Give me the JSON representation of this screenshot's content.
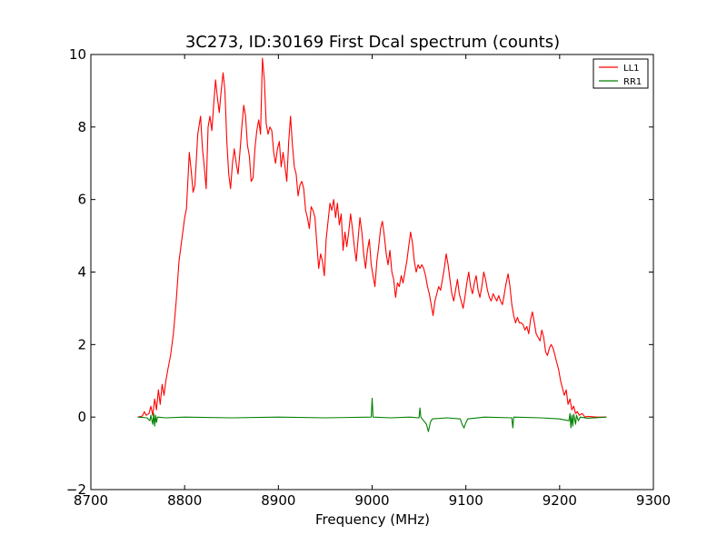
{
  "chart_data": {
    "type": "line",
    "title": "3C273, ID:30169 First Dcal spectrum (counts)",
    "xlabel": "Frequency (MHz)",
    "ylabel": "",
    "xlim": [
      8700,
      9300
    ],
    "ylim": [
      -2,
      10
    ],
    "xticks": [
      8700,
      8800,
      8900,
      9000,
      9100,
      9200,
      9300
    ],
    "yticks": [
      -2,
      0,
      2,
      4,
      6,
      8,
      10
    ],
    "xtick_labels": [
      "8700",
      "8800",
      "8900",
      "9000",
      "9100",
      "9200",
      "9300"
    ],
    "ytick_labels": [
      "−2",
      "0",
      "2",
      "4",
      "6",
      "8",
      "10"
    ],
    "grid": false,
    "legend_position": "top-right",
    "series": [
      {
        "name": "LL1",
        "color": "#ff0000",
        "points": [
          [
            8750,
            0.0
          ],
          [
            8755,
            0.03
          ],
          [
            8757,
            0.15
          ],
          [
            8759,
            0.05
          ],
          [
            8762,
            0.1
          ],
          [
            8764,
            0.3
          ],
          [
            8766,
            0.05
          ],
          [
            8768,
            0.5
          ],
          [
            8770,
            0.2
          ],
          [
            8772,
            0.75
          ],
          [
            8774,
            0.35
          ],
          [
            8776,
            0.9
          ],
          [
            8778,
            0.6
          ],
          [
            8780,
            1.0
          ],
          [
            8782,
            1.3
          ],
          [
            8785,
            1.7
          ],
          [
            8788,
            2.3
          ],
          [
            8791,
            3.2
          ],
          [
            8794,
            4.3
          ],
          [
            8797,
            4.9
          ],
          [
            8800,
            5.5
          ],
          [
            8802,
            5.75
          ],
          [
            8805,
            7.3
          ],
          [
            8807,
            6.8
          ],
          [
            8809,
            6.2
          ],
          [
            8811,
            6.4
          ],
          [
            8814,
            7.8
          ],
          [
            8817,
            8.3
          ],
          [
            8819,
            7.4
          ],
          [
            8821,
            6.9
          ],
          [
            8823,
            6.3
          ],
          [
            8825,
            8.0
          ],
          [
            8827,
            8.3
          ],
          [
            8829,
            7.9
          ],
          [
            8831,
            8.6
          ],
          [
            8833,
            9.3
          ],
          [
            8835,
            8.8
          ],
          [
            8837,
            8.4
          ],
          [
            8839,
            9.0
          ],
          [
            8841,
            9.5
          ],
          [
            8843,
            9.0
          ],
          [
            8845,
            7.6
          ],
          [
            8847,
            6.7
          ],
          [
            8849,
            6.3
          ],
          [
            8851,
            7.0
          ],
          [
            8853,
            7.4
          ],
          [
            8855,
            7.0
          ],
          [
            8857,
            6.7
          ],
          [
            8859,
            7.3
          ],
          [
            8861,
            8.0
          ],
          [
            8863,
            8.6
          ],
          [
            8865,
            8.3
          ],
          [
            8867,
            7.5
          ],
          [
            8869,
            7.2
          ],
          [
            8871,
            6.5
          ],
          [
            8873,
            6.6
          ],
          [
            8875,
            7.4
          ],
          [
            8877,
            7.9
          ],
          [
            8879,
            8.2
          ],
          [
            8881,
            7.8
          ],
          [
            8883,
            9.9
          ],
          [
            8885,
            9.3
          ],
          [
            8887,
            8.1
          ],
          [
            8889,
            7.8
          ],
          [
            8891,
            8.0
          ],
          [
            8893,
            7.9
          ],
          [
            8895,
            7.3
          ],
          [
            8897,
            7.0
          ],
          [
            8899,
            7.4
          ],
          [
            8901,
            7.6
          ],
          [
            8903,
            6.9
          ],
          [
            8905,
            7.3
          ],
          [
            8907,
            6.9
          ],
          [
            8909,
            6.5
          ],
          [
            8911,
            7.6
          ],
          [
            8913,
            8.3
          ],
          [
            8915,
            7.5
          ],
          [
            8917,
            6.9
          ],
          [
            8919,
            6.7
          ],
          [
            8921,
            6.1
          ],
          [
            8923,
            6.4
          ],
          [
            8925,
            6.5
          ],
          [
            8927,
            6.3
          ],
          [
            8929,
            5.7
          ],
          [
            8931,
            5.5
          ],
          [
            8933,
            5.2
          ],
          [
            8935,
            5.8
          ],
          [
            8937,
            5.7
          ],
          [
            8939,
            5.5
          ],
          [
            8941,
            4.8
          ],
          [
            8943,
            4.1
          ],
          [
            8945,
            4.5
          ],
          [
            8947,
            4.3
          ],
          [
            8949,
            3.9
          ],
          [
            8951,
            4.9
          ],
          [
            8953,
            5.4
          ],
          [
            8955,
            5.9
          ],
          [
            8957,
            5.7
          ],
          [
            8959,
            6.0
          ],
          [
            8961,
            5.5
          ],
          [
            8963,
            5.9
          ],
          [
            8965,
            5.3
          ],
          [
            8967,
            5.6
          ],
          [
            8969,
            4.6
          ],
          [
            8971,
            5.1
          ],
          [
            8973,
            4.7
          ],
          [
            8975,
            5.1
          ],
          [
            8977,
            5.6
          ],
          [
            8979,
            5.2
          ],
          [
            8981,
            4.7
          ],
          [
            8983,
            4.3
          ],
          [
            8985,
            4.9
          ],
          [
            8987,
            5.5
          ],
          [
            8989,
            5.1
          ],
          [
            8991,
            4.5
          ],
          [
            8993,
            4.1
          ],
          [
            8995,
            4.6
          ],
          [
            8997,
            4.9
          ],
          [
            8999,
            4.2
          ],
          [
            9001,
            3.9
          ],
          [
            9003,
            3.6
          ],
          [
            9005,
            4.3
          ],
          [
            9007,
            4.7
          ],
          [
            9009,
            5.2
          ],
          [
            9011,
            5.4
          ],
          [
            9013,
            5.0
          ],
          [
            9015,
            4.5
          ],
          [
            9017,
            4.2
          ],
          [
            9019,
            4.6
          ],
          [
            9021,
            4.0
          ],
          [
            9023,
            3.8
          ],
          [
            9025,
            3.3
          ],
          [
            9027,
            3.7
          ],
          [
            9029,
            3.6
          ],
          [
            9031,
            3.9
          ],
          [
            9033,
            3.7
          ],
          [
            9035,
            4.0
          ],
          [
            9037,
            4.3
          ],
          [
            9039,
            4.7
          ],
          [
            9041,
            5.1
          ],
          [
            9043,
            4.8
          ],
          [
            9045,
            4.3
          ],
          [
            9047,
            4.0
          ],
          [
            9049,
            4.2
          ],
          [
            9051,
            4.1
          ],
          [
            9053,
            4.2
          ],
          [
            9055,
            4.1
          ],
          [
            9057,
            3.9
          ],
          [
            9059,
            3.6
          ],
          [
            9061,
            3.4
          ],
          [
            9063,
            3.1
          ],
          [
            9065,
            2.8
          ],
          [
            9067,
            3.2
          ],
          [
            9069,
            3.4
          ],
          [
            9071,
            3.6
          ],
          [
            9073,
            3.5
          ],
          [
            9075,
            3.8
          ],
          [
            9077,
            4.1
          ],
          [
            9079,
            4.5
          ],
          [
            9081,
            4.2
          ],
          [
            9083,
            3.8
          ],
          [
            9085,
            3.4
          ],
          [
            9087,
            3.2
          ],
          [
            9089,
            3.5
          ],
          [
            9091,
            3.8
          ],
          [
            9093,
            3.4
          ],
          [
            9095,
            3.2
          ],
          [
            9097,
            3.0
          ],
          [
            9099,
            3.3
          ],
          [
            9101,
            3.7
          ],
          [
            9103,
            4.0
          ],
          [
            9105,
            3.6
          ],
          [
            9107,
            3.4
          ],
          [
            9109,
            3.7
          ],
          [
            9111,
            3.9
          ],
          [
            9113,
            3.5
          ],
          [
            9115,
            3.3
          ],
          [
            9117,
            3.6
          ],
          [
            9119,
            4.0
          ],
          [
            9121,
            3.8
          ],
          [
            9123,
            3.5
          ],
          [
            9125,
            3.3
          ],
          [
            9127,
            3.2
          ],
          [
            9129,
            3.4
          ],
          [
            9131,
            3.3
          ],
          [
            9133,
            3.2
          ],
          [
            9135,
            3.35
          ],
          [
            9137,
            3.2
          ],
          [
            9139,
            3.1
          ],
          [
            9141,
            3.4
          ],
          [
            9143,
            3.7
          ],
          [
            9145,
            3.95
          ],
          [
            9147,
            3.6
          ],
          [
            9149,
            3.1
          ],
          [
            9151,
            2.8
          ],
          [
            9153,
            2.6
          ],
          [
            9155,
            2.75
          ],
          [
            9157,
            2.6
          ],
          [
            9159,
            2.6
          ],
          [
            9161,
            2.55
          ],
          [
            9163,
            2.4
          ],
          [
            9165,
            2.5
          ],
          [
            9167,
            2.3
          ],
          [
            9169,
            2.7
          ],
          [
            9171,
            2.9
          ],
          [
            9173,
            2.6
          ],
          [
            9175,
            2.3
          ],
          [
            9177,
            2.2
          ],
          [
            9179,
            2.1
          ],
          [
            9181,
            2.4
          ],
          [
            9183,
            2.2
          ],
          [
            9185,
            1.8
          ],
          [
            9187,
            1.7
          ],
          [
            9189,
            1.9
          ],
          [
            9191,
            2.0
          ],
          [
            9193,
            1.9
          ],
          [
            9195,
            1.7
          ],
          [
            9197,
            1.5
          ],
          [
            9199,
            1.3
          ],
          [
            9201,
            1.0
          ],
          [
            9203,
            0.8
          ],
          [
            9205,
            0.6
          ],
          [
            9207,
            0.75
          ],
          [
            9209,
            0.35
          ],
          [
            9211,
            0.5
          ],
          [
            9213,
            0.2
          ],
          [
            9215,
            0.3
          ],
          [
            9217,
            0.1
          ],
          [
            9219,
            0.15
          ],
          [
            9221,
            0.05
          ],
          [
            9224,
            0.1
          ],
          [
            9227,
            0.0
          ],
          [
            9230,
            0.02
          ],
          [
            9240,
            0.0
          ],
          [
            9250,
            0.0
          ]
        ]
      },
      {
        "name": "RR1",
        "color": "#008000",
        "points": [
          [
            8750,
            0.0
          ],
          [
            8760,
            -0.02
          ],
          [
            8763,
            -0.1
          ],
          [
            8764,
            0.05
          ],
          [
            8766,
            -0.2
          ],
          [
            8767,
            0.1
          ],
          [
            8768,
            -0.25
          ],
          [
            8769,
            0.05
          ],
          [
            8770,
            -0.15
          ],
          [
            8771,
            0.0
          ],
          [
            8780,
            -0.02
          ],
          [
            8800,
            0.0
          ],
          [
            8850,
            -0.02
          ],
          [
            8900,
            0.0
          ],
          [
            8950,
            -0.02
          ],
          [
            8999,
            0.0
          ],
          [
            9000,
            0.52
          ],
          [
            9001,
            0.0
          ],
          [
            9020,
            -0.02
          ],
          [
            9040,
            0.0
          ],
          [
            9050,
            -0.02
          ],
          [
            9051,
            0.25
          ],
          [
            9052,
            0.0
          ],
          [
            9055,
            -0.1
          ],
          [
            9058,
            -0.2
          ],
          [
            9060,
            -0.4
          ],
          [
            9062,
            -0.15
          ],
          [
            9064,
            -0.05
          ],
          [
            9080,
            -0.02
          ],
          [
            9094,
            -0.05
          ],
          [
            9096,
            -0.2
          ],
          [
            9098,
            -0.3
          ],
          [
            9100,
            -0.15
          ],
          [
            9102,
            -0.05
          ],
          [
            9120,
            0.0
          ],
          [
            9149,
            -0.02
          ],
          [
            9150,
            -0.3
          ],
          [
            9151,
            0.0
          ],
          [
            9180,
            -0.02
          ],
          [
            9200,
            -0.05
          ],
          [
            9210,
            -0.1
          ],
          [
            9211,
            0.1
          ],
          [
            9212,
            -0.3
          ],
          [
            9213,
            0.05
          ],
          [
            9214,
            -0.25
          ],
          [
            9215,
            0.08
          ],
          [
            9217,
            -0.2
          ],
          [
            9218,
            0.05
          ],
          [
            9220,
            -0.1
          ],
          [
            9222,
            0.0
          ],
          [
            9230,
            -0.03
          ],
          [
            9250,
            0.0
          ]
        ]
      }
    ]
  }
}
